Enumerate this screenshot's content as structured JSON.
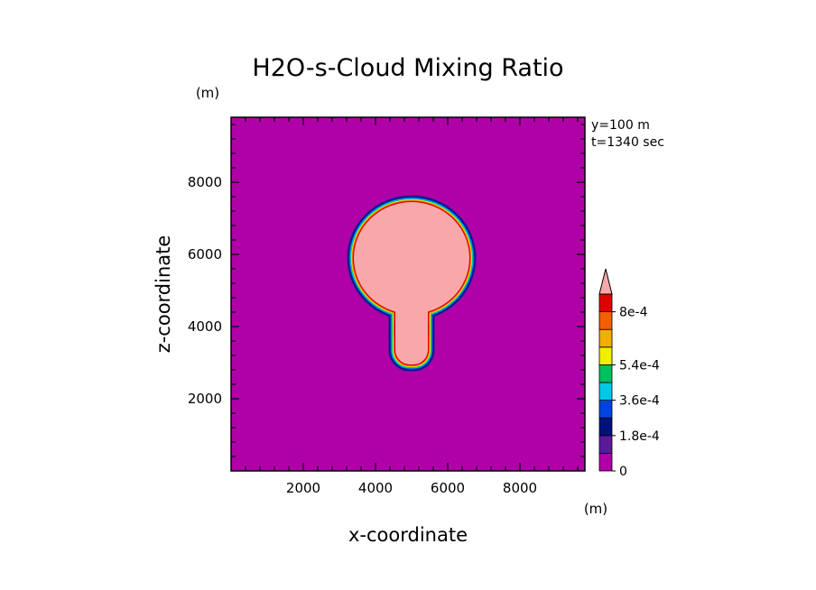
{
  "chart_data": {
    "type": "heatmap",
    "title": "H2O-s-Cloud Mixing Ratio",
    "xlabel": "x-coordinate",
    "ylabel": "z-coordinate",
    "xunit": "(m)",
    "yunit": "(m)",
    "info": [
      "y=100 m",
      "t=1340 sec"
    ],
    "xlim": [
      0,
      9800
    ],
    "ylim": [
      0,
      9800
    ],
    "xticks": [
      2000,
      4000,
      6000,
      8000
    ],
    "yticks": [
      2000,
      4000,
      6000,
      8000
    ],
    "tick_labels_x": [
      "2000",
      "4000",
      "6000",
      "8000"
    ],
    "tick_labels_y": [
      "2000",
      "4000",
      "6000",
      "8000"
    ],
    "colorbar": {
      "levels": [
        0,
        9e-05,
        0.00018,
        0.00027,
        0.00036,
        0.00045,
        0.00054,
        0.00063,
        0.00072,
        0.0008
      ],
      "colors": [
        "#b000a8",
        "#5a1a9a",
        "#00127a",
        "#0044e0",
        "#00c8e8",
        "#00c060",
        "#f0f000",
        "#f0b000",
        "#f06000",
        "#e00000",
        "#f8a8a8"
      ],
      "labels": [
        {
          "value": 0,
          "text": "0"
        },
        {
          "value": 0.00018,
          "text": "1.8e-4"
        },
        {
          "value": 0.00036,
          "text": "3.6e-4"
        },
        {
          "value": 0.00054,
          "text": "5.4e-4"
        },
        {
          "value": 0.0008,
          "text": "8e-4"
        }
      ]
    },
    "field": {
      "background_value": 0,
      "core_value": 0.0008,
      "cloud_cap": {
        "center_x": 5000,
        "center_z": 5900,
        "radius_x": 1600,
        "radius_z": 1550
      },
      "stem": {
        "x_min": 4550,
        "x_max": 5450,
        "z_bottom": 2950,
        "z_top": 4500
      }
    }
  }
}
